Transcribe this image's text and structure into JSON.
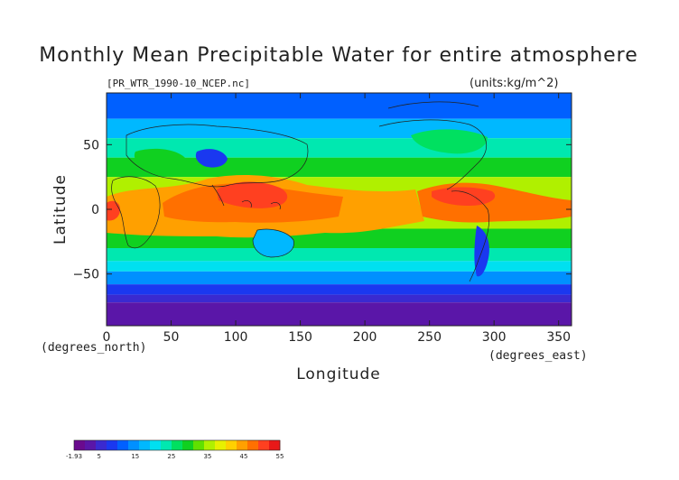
{
  "title": "Monthly Mean Precipitable Water for entire atmosphere",
  "file_label": "[PR_WTR_1990-10_NCEP.nc]",
  "units_label": "(units:kg/m^2)",
  "chart_data": {
    "type": "heatmap",
    "title": "Monthly Mean Precipitable Water for entire atmosphere",
    "xlabel": "Longitude",
    "ylabel": "Latitude",
    "x_unit_label": "(degrees_east)",
    "y_unit_label": "(degrees_north)",
    "xlim": [
      0,
      360
    ],
    "ylim": [
      -90,
      90
    ],
    "x_ticks": [
      0,
      50,
      100,
      150,
      200,
      250,
      300,
      350
    ],
    "y_ticks": [
      50,
      0,
      -50
    ],
    "colorbar": {
      "min": -1.93,
      "max": 55,
      "ticks": [
        "-1.93",
        "5",
        "15",
        "25",
        "35",
        "45",
        "55"
      ],
      "colors": [
        "#6a0a8e",
        "#5a16a8",
        "#3a2ad0",
        "#1a38f0",
        "#0060ff",
        "#0090ff",
        "#00b8ff",
        "#00e0f0",
        "#00e8b0",
        "#00e060",
        "#10d020",
        "#60e000",
        "#b0f000",
        "#e8f000",
        "#ffd000",
        "#ffa000",
        "#ff7000",
        "#ff4020",
        "#e81818"
      ]
    }
  }
}
